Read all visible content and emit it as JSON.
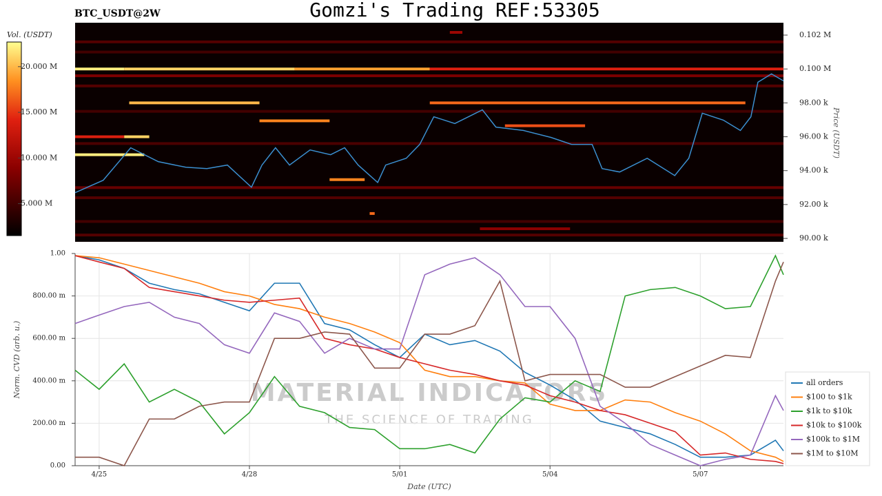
{
  "title": "Gomzi's Trading REF:53305",
  "watermark": {
    "main": "MATERIAL INDICATORS",
    "sub": "THE SCIENCE OF TRADING"
  },
  "chart_data": [
    {
      "type": "heatmap",
      "title": "BTC_USDT@2W",
      "colorbar_label": "Vol. (USDT)",
      "ylabel": "Price (USDT)",
      "xlim": [
        -0.48,
        13.66
      ],
      "ylim": [
        89800,
        102730
      ],
      "yticks": [
        {
          "value": 102000,
          "label": "0.102 M"
        },
        {
          "value": 100000,
          "label": "0.100 M"
        },
        {
          "value": 98000,
          "label": "98.00 k"
        },
        {
          "value": 96000,
          "label": "96.00 k"
        },
        {
          "value": 94000,
          "label": "94.00 k"
        },
        {
          "value": 92000,
          "label": "92.00 k"
        },
        {
          "value": 90000,
          "label": "90.00 k"
        }
      ],
      "clim": [
        1500000,
        22700000
      ],
      "cticks": [
        {
          "value": 20000000,
          "label": "20.000 M"
        },
        {
          "value": 15000000,
          "label": "15.000 M"
        },
        {
          "value": 10000000,
          "label": "10.000 M"
        },
        {
          "value": 5000000,
          "label": "5.000 M"
        }
      ],
      "levels": [
        {
          "price": 101600,
          "x": [
            -0.48,
            13.66
          ],
          "volume": 6000000
        },
        {
          "price": 101000,
          "x": [
            -0.48,
            13.66
          ],
          "volume": 5000000
        },
        {
          "price": 99600,
          "x": [
            -0.48,
            13.66
          ],
          "volume": 8000000
        },
        {
          "price": 99000,
          "x": [
            -0.48,
            13.66
          ],
          "volume": 6000000
        },
        {
          "price": 97500,
          "x": [
            -0.48,
            13.66
          ],
          "volume": 5000000
        },
        {
          "price": 95600,
          "x": [
            -0.48,
            13.66
          ],
          "volume": 5500000
        },
        {
          "price": 93000,
          "x": [
            -0.48,
            13.66
          ],
          "volume": 7000000
        },
        {
          "price": 92400,
          "x": [
            -0.48,
            13.66
          ],
          "volume": 6000000
        },
        {
          "price": 91000,
          "x": [
            -0.48,
            13.66
          ],
          "volume": 5000000
        },
        {
          "price": 90200,
          "x": [
            -0.48,
            13.66
          ],
          "volume": 6000000
        },
        {
          "price": 100000,
          "x": [
            -0.48,
            0.5
          ],
          "volume": 22000000
        },
        {
          "price": 100000,
          "x": [
            0.5,
            3.9
          ],
          "volume": 21000000
        },
        {
          "price": 100000,
          "x": [
            3.9,
            6.6
          ],
          "volume": 19000000
        },
        {
          "price": 100000,
          "x": [
            6.6,
            13.66
          ],
          "volume": 14000000
        },
        {
          "price": 98000,
          "x": [
            0.6,
            3.2
          ],
          "volume": 20000000
        },
        {
          "price": 98000,
          "x": [
            6.6,
            12.9
          ],
          "volume": 17000000
        },
        {
          "price": 96940,
          "x": [
            3.2,
            4.6
          ],
          "volume": 18000000
        },
        {
          "price": 96650,
          "x": [
            8.1,
            9.7
          ],
          "volume": 16000000
        },
        {
          "price": 96000,
          "x": [
            -0.48,
            0.5
          ],
          "volume": 14000000
        },
        {
          "price": 96000,
          "x": [
            0.5,
            1.0
          ],
          "volume": 21000000
        },
        {
          "price": 94940,
          "x": [
            -0.48,
            0.9
          ],
          "volume": 22000000
        },
        {
          "price": 93470,
          "x": [
            4.6,
            5.3
          ],
          "volume": 18000000
        },
        {
          "price": 91470,
          "x": [
            5.4,
            5.5
          ],
          "volume": 17000000
        },
        {
          "price": 90570,
          "x": [
            7.6,
            9.4
          ],
          "volume": 9000000
        },
        {
          "price": 102160,
          "x": [
            7.0,
            7.25
          ],
          "volume": 10000000
        }
      ],
      "price_line": {
        "color": "#3b8fd0",
        "x": [
          -0.48,
          0.08,
          0.63,
          1.18,
          1.73,
          2.15,
          2.56,
          3.04,
          3.25,
          3.52,
          3.8,
          4.21,
          4.62,
          4.9,
          5.17,
          5.56,
          5.72,
          6.13,
          6.4,
          6.68,
          7.1,
          7.65,
          7.92,
          8.47,
          9.02,
          9.43,
          9.84,
          10.04,
          10.39,
          10.94,
          11.49,
          11.77,
          12.04,
          12.46,
          12.8,
          13.01,
          13.15,
          13.42,
          13.66
        ],
        "values": [
          92700,
          93430,
          95350,
          94530,
          94200,
          94120,
          94330,
          93020,
          94330,
          95350,
          94330,
          95220,
          94940,
          95350,
          94330,
          93300,
          94330,
          94730,
          95550,
          97180,
          96780,
          97590,
          96570,
          96370,
          95960,
          95550,
          95550,
          94120,
          93920,
          94730,
          93710,
          94730,
          97390,
          96980,
          96370,
          97180,
          99220,
          99710,
          99300
        ]
      }
    },
    {
      "type": "line",
      "xlabel": "Date (UTC)",
      "ylabel": "Norm. CVD (arb. u.)",
      "grid": true,
      "legend": "right",
      "xlim": [
        -0.48,
        13.66
      ],
      "ylim": [
        0,
        1
      ],
      "xticks": [
        {
          "value": 0,
          "label": "4/25"
        },
        {
          "value": 3,
          "label": "4/28"
        },
        {
          "value": 6,
          "label": "5/01"
        },
        {
          "value": 9,
          "label": "5/04"
        },
        {
          "value": 12,
          "label": "5/07"
        }
      ],
      "yticks": [
        {
          "value": 1,
          "label": "1.00"
        },
        {
          "value": 0.8,
          "label": "800.00 m"
        },
        {
          "value": 0.6,
          "label": "600.00 m"
        },
        {
          "value": 0.4,
          "label": "400.00 m"
        },
        {
          "value": 0.2,
          "label": "200.00 m"
        },
        {
          "value": 0,
          "label": "0.00"
        }
      ],
      "x": [
        -0.48,
        0,
        0.5,
        1,
        1.5,
        2,
        2.5,
        3,
        3.5,
        4,
        4.5,
        5,
        5.5,
        6,
        6.5,
        7,
        7.5,
        8,
        8.5,
        9,
        9.5,
        10,
        10.5,
        11,
        11.5,
        12,
        12.5,
        13,
        13.5,
        13.66
      ],
      "series": [
        {
          "name": "all orders",
          "color": "#1f77b4",
          "values": [
            0.99,
            0.97,
            0.93,
            0.86,
            0.83,
            0.81,
            0.77,
            0.73,
            0.86,
            0.86,
            0.67,
            0.64,
            0.57,
            0.51,
            0.62,
            0.57,
            0.59,
            0.54,
            0.44,
            0.38,
            0.31,
            0.21,
            0.18,
            0.15,
            0.1,
            0.04,
            0.04,
            0.05,
            0.12,
            0.07
          ]
        },
        {
          "name": "$100 to $1k",
          "color": "#ff7f0e",
          "values": [
            0.99,
            0.98,
            0.95,
            0.92,
            0.89,
            0.86,
            0.82,
            0.8,
            0.76,
            0.74,
            0.7,
            0.67,
            0.63,
            0.58,
            0.45,
            0.42,
            0.42,
            0.4,
            0.39,
            0.29,
            0.26,
            0.26,
            0.31,
            0.3,
            0.25,
            0.21,
            0.15,
            0.07,
            0.04,
            0.02
          ]
        },
        {
          "name": "$1k to $10k",
          "color": "#2ca02c",
          "values": [
            0.45,
            0.36,
            0.48,
            0.3,
            0.36,
            0.3,
            0.15,
            0.25,
            0.42,
            0.28,
            0.25,
            0.18,
            0.17,
            0.08,
            0.08,
            0.1,
            0.06,
            0.22,
            0.32,
            0.3,
            0.4,
            0.35,
            0.8,
            0.83,
            0.84,
            0.8,
            0.74,
            0.75,
            0.99,
            0.9
          ]
        },
        {
          "name": "$10k to $100k",
          "color": "#d62728",
          "values": [
            0.99,
            0.96,
            0.93,
            0.84,
            0.82,
            0.8,
            0.78,
            0.77,
            0.78,
            0.79,
            0.6,
            0.57,
            0.55,
            0.51,
            0.48,
            0.45,
            0.43,
            0.4,
            0.38,
            0.33,
            0.3,
            0.26,
            0.24,
            0.2,
            0.16,
            0.05,
            0.06,
            0.03,
            0.02,
            0.01
          ]
        },
        {
          "name": "$100k to $1M",
          "color": "#9467bd",
          "values": [
            0.67,
            0.71,
            0.75,
            0.77,
            0.7,
            0.67,
            0.57,
            0.53,
            0.72,
            0.68,
            0.53,
            0.6,
            0.55,
            0.55,
            0.9,
            0.95,
            0.98,
            0.9,
            0.75,
            0.75,
            0.6,
            0.28,
            0.2,
            0.1,
            0.05,
            0.0,
            0.03,
            0.05,
            0.33,
            0.26
          ]
        },
        {
          "name": "$1M to $10M",
          "color": "#8c564b",
          "values": [
            0.04,
            0.04,
            0.0,
            0.22,
            0.22,
            0.28,
            0.3,
            0.3,
            0.6,
            0.6,
            0.63,
            0.62,
            0.46,
            0.46,
            0.62,
            0.62,
            0.66,
            0.87,
            0.4,
            0.43,
            0.43,
            0.43,
            0.37,
            0.37,
            0.42,
            0.47,
            0.52,
            0.51,
            0.87,
            0.96
          ]
        }
      ]
    }
  ]
}
